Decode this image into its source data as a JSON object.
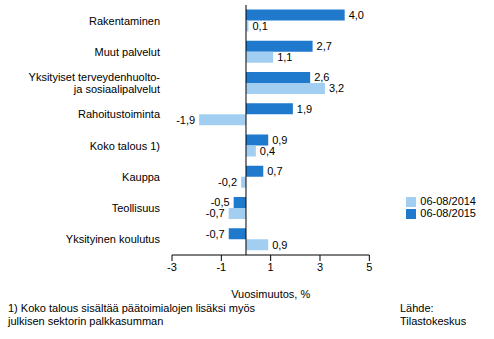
{
  "chart_data": {
    "type": "bar",
    "orientation": "horizontal",
    "x_label": "Vuosimuutos, %",
    "annotations": [
      "1) Koko talous sisältää päätoimialojen lisäksi myös julkisen sektorin palkkasumman",
      "Lähde: Tilastokeskus"
    ],
    "categories": [
      "Rakentaminen",
      "Muut palvelut",
      "Yksityiset terveydenhuolto- ja sosiaalipalvelut",
      "Rahoitustoiminta",
      "Koko talous 1)",
      "Kauppa",
      "Teollisuus",
      "Yksityinen koulutus"
    ],
    "series": [
      {
        "name": "06-08/2015",
        "color": "#1f7acd",
        "values": [
          4.0,
          2.7,
          2.6,
          1.9,
          0.9,
          0.7,
          -0.5,
          -0.7
        ],
        "value_labels": [
          "4,0",
          "2,7",
          "2,6",
          "1,9",
          "0,9",
          "0,7",
          "-0,5",
          "-0,7"
        ]
      },
      {
        "name": "06-08/2014",
        "color": "#a2cff1",
        "values": [
          0.1,
          1.1,
          3.2,
          -1.9,
          0.4,
          -0.2,
          -0.7,
          0.9
        ],
        "value_labels": [
          "0,1",
          "1,1",
          "3,2",
          "-1,9",
          "0,4",
          "-0,2",
          "-0,7",
          "0,9"
        ]
      }
    ],
    "xlim": [
      -3,
      5
    ],
    "xticks": [
      -3,
      -1,
      1,
      3,
      5
    ],
    "grid": false,
    "legend": "bottom-right",
    "data_labels": true
  }
}
